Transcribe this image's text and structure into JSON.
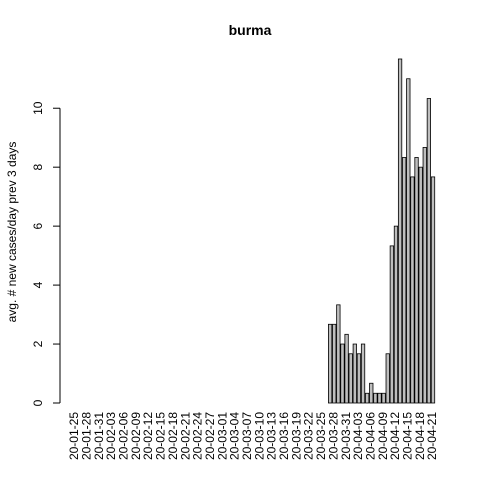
{
  "chart_data": {
    "type": "bar",
    "title": "burma",
    "ylabel": "avg. # new cases/day prev  3  days",
    "categories": [
      "20-01-25",
      null,
      null,
      "20-01-28",
      null,
      null,
      "20-01-31",
      null,
      null,
      "20-02-03",
      null,
      null,
      "20-02-06",
      null,
      null,
      "20-02-09",
      null,
      null,
      "20-02-12",
      null,
      null,
      "20-02-15",
      null,
      null,
      "20-02-18",
      null,
      null,
      "20-02-21",
      null,
      null,
      "20-02-24",
      null,
      null,
      "20-02-27",
      null,
      null,
      "20-03-01",
      null,
      null,
      "20-03-04",
      null,
      null,
      "20-03-07",
      null,
      null,
      "20-03-10",
      null,
      null,
      "20-03-13",
      null,
      null,
      "20-03-16",
      null,
      null,
      "20-03-19",
      null,
      null,
      "20-03-22",
      null,
      null,
      "20-03-25",
      null,
      null,
      "20-03-28",
      null,
      null,
      "20-03-31",
      null,
      null,
      "20-04-03",
      null,
      null,
      "20-04-06",
      null,
      null,
      "20-04-09",
      null,
      null,
      "20-04-12",
      null,
      null,
      "20-04-15",
      null,
      null,
      "20-04-18",
      null,
      null,
      "20-04-21"
    ],
    "values": [
      0,
      0,
      0,
      0,
      0,
      0,
      0,
      0,
      0,
      0,
      0,
      0,
      0,
      0,
      0,
      0,
      0,
      0,
      0,
      0,
      0,
      0,
      0,
      0,
      0,
      0,
      0,
      0,
      0,
      0,
      0,
      0,
      0,
      0,
      0,
      0,
      0,
      0,
      0,
      0,
      0,
      0,
      0,
      0,
      0,
      0,
      0,
      0,
      0,
      0,
      0,
      0,
      0,
      0,
      0,
      0,
      0,
      0,
      0,
      0,
      0,
      0,
      2.67,
      2.67,
      3.33,
      2.0,
      2.33,
      1.67,
      2.0,
      1.67,
      2.0,
      0.33,
      0.67,
      0.33,
      0.33,
      0.33,
      1.67,
      5.33,
      6.0,
      11.67,
      8.33,
      11.0,
      7.67,
      8.33,
      8.0,
      8.67,
      10.33,
      7.67
    ],
    "color": "#bebebe",
    "ylim": [
      0,
      11.67
    ],
    "yticks": [
      0,
      2,
      4,
      6,
      8,
      10
    ]
  }
}
